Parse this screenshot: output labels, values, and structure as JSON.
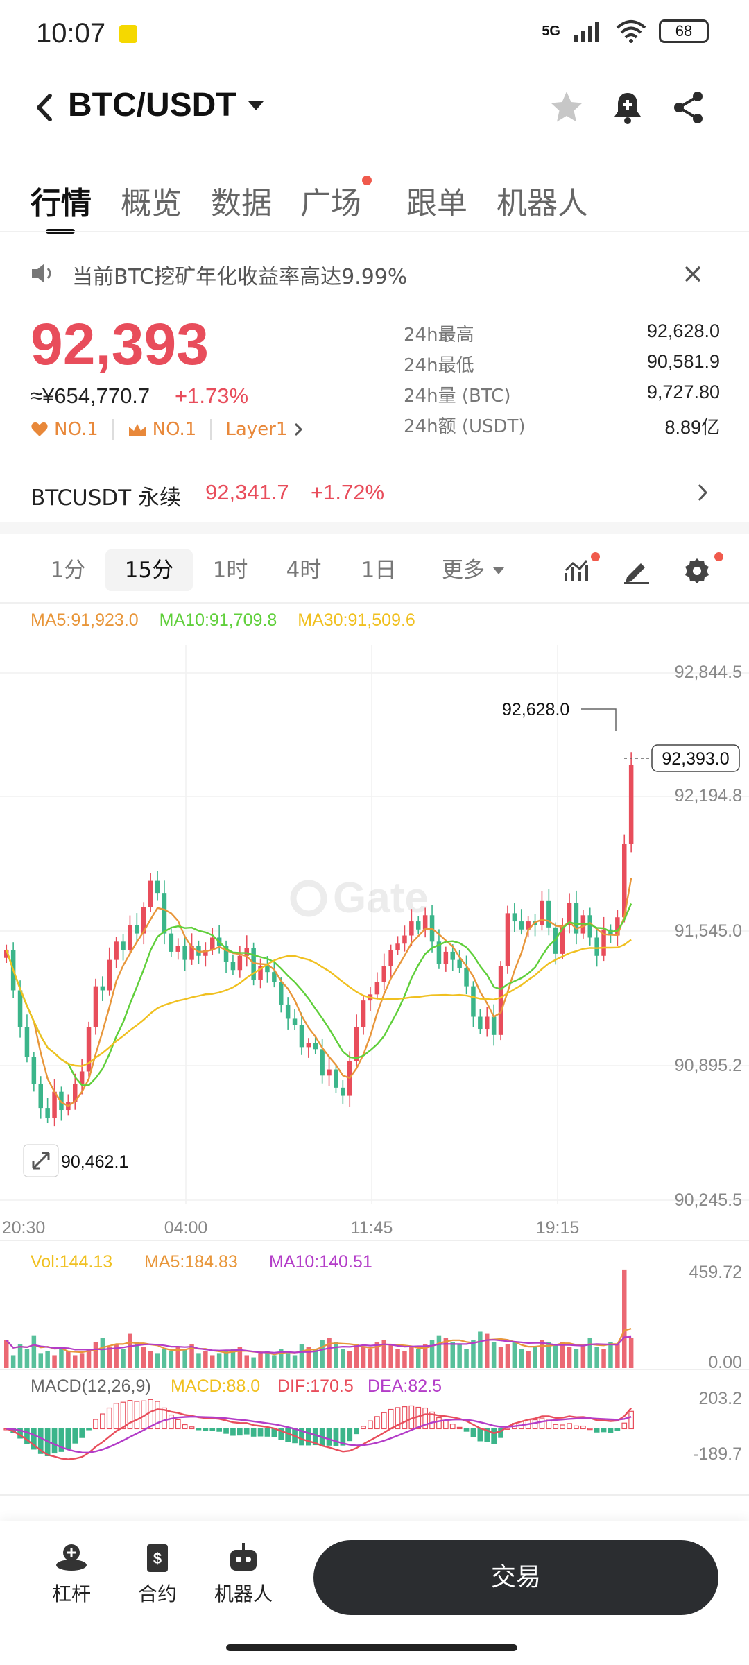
{
  "status_bar": {
    "time": "10:07",
    "network": "5G",
    "battery": "68"
  },
  "header": {
    "title": "BTC/USDT"
  },
  "tabs": [
    {
      "label": "行情",
      "active": true,
      "dot": false
    },
    {
      "label": "概览",
      "active": false,
      "dot": false
    },
    {
      "label": "数据",
      "active": false,
      "dot": false
    },
    {
      "label": "广场",
      "active": false,
      "dot": true
    },
    {
      "label": "跟单",
      "active": false,
      "dot": false
    },
    {
      "label": "机器人",
      "active": false,
      "dot": false
    }
  ],
  "announcement": {
    "text": "当前BTC挖矿年化收益率高达9.99%"
  },
  "price": {
    "last": "92,393",
    "cny": "≈¥654,770.7",
    "change": "+1.73%",
    "tags": [
      "NO.1",
      "NO.1",
      "Layer1"
    ]
  },
  "stats": [
    {
      "label": "24h最高",
      "value": "92,628.0"
    },
    {
      "label": "24h最低",
      "value": "90,581.9"
    },
    {
      "label": "24h量 (BTC)",
      "value": "9,727.80"
    },
    {
      "label": "24h额 (USDT)",
      "value": "8.89亿"
    }
  ],
  "perpetual": {
    "name": "BTCUSDT 永续",
    "price": "92,341.7",
    "change": "+1.72%"
  },
  "intervals": [
    {
      "label": "1分",
      "active": false
    },
    {
      "label": "15分",
      "active": true
    },
    {
      "label": "1时",
      "active": false
    },
    {
      "label": "4时",
      "active": false
    },
    {
      "label": "1日",
      "active": false
    },
    {
      "label": "更多",
      "active": false
    }
  ],
  "ma_legend": {
    "ma5": "MA5:91,923.0",
    "ma10": "MA10:91,709.8",
    "ma30": "MA30:91,509.6"
  },
  "colors": {
    "up": "#e84d5b",
    "down": "#3bb58a",
    "ma5": "#e8963a",
    "ma10": "#5fcf3a",
    "ma30": "#f0c020",
    "dif": "#e84d5b",
    "dea": "#b33cc8"
  },
  "chart_data": {
    "type": "candlestick",
    "price_axis_ticks": [
      "92,844.5",
      "92,194.8",
      "91,545.0",
      "90,895.2",
      "90,245.5"
    ],
    "price_axis_values": [
      92844.5,
      92194.8,
      91545.0,
      90895.2,
      90245.5
    ],
    "time_ticks": [
      "20:30",
      "04:00",
      "11:45",
      "19:15"
    ],
    "high_marker": "92,628.0",
    "low_marker": "90,462.1",
    "current_price_label": "92,393.0",
    "closes": [
      91480,
      91280,
      91100,
      90950,
      90820,
      90700,
      90650,
      90780,
      90690,
      90730,
      90820,
      90880,
      91100,
      91300,
      91280,
      91430,
      91520,
      91480,
      91600,
      91560,
      91690,
      91820,
      91760,
      91560,
      91470,
      91500,
      91430,
      91500,
      91450,
      91480,
      91540,
      91500,
      91420,
      91380,
      91450,
      91490,
      91330,
      91400,
      91370,
      91320,
      91210,
      91140,
      91110,
      91000,
      91020,
      90990,
      90860,
      90890,
      90800,
      90760,
      90930,
      91100,
      91230,
      91260,
      91320,
      91400,
      91480,
      91510,
      91550,
      91620,
      91580,
      91650,
      91520,
      91410,
      91470,
      91430,
      91390,
      91300,
      91150,
      91090,
      91150,
      91060,
      91400,
      91660,
      91620,
      91580,
      91620,
      91600,
      91720,
      91590,
      91460,
      91600,
      91710,
      91560,
      91650,
      91540,
      91450,
      91580,
      91550,
      91640,
      92000,
      92393
    ],
    "volume": {
      "legend_vol": "Vol:144.13",
      "legend_ma5": "MA5:184.83",
      "legend_ma10": "MA10:140.51",
      "axis_max": "459.72",
      "axis_min": "0.00",
      "values": [
        130,
        60,
        110,
        90,
        150,
        70,
        80,
        60,
        100,
        80,
        60,
        70,
        90,
        120,
        140,
        100,
        110,
        90,
        160,
        120,
        100,
        80,
        70,
        90,
        80,
        100,
        90,
        110,
        70,
        80,
        60,
        70,
        80,
        90,
        100,
        60,
        50,
        70,
        80,
        60,
        90,
        70,
        60,
        110,
        100,
        90,
        130,
        140,
        120,
        90,
        80,
        110,
        100,
        90,
        120,
        130,
        110,
        90,
        80,
        100,
        90,
        110,
        130,
        150,
        140,
        120,
        110,
        90,
        130,
        170,
        160,
        120,
        100,
        110,
        120,
        90,
        80,
        100,
        130,
        120,
        110,
        120,
        100,
        90,
        110,
        140,
        100,
        90,
        120,
        110,
        460,
        140
      ]
    },
    "macd": {
      "legend_name": "MACD(12,26,9)",
      "legend_macd": "MACD:88.0",
      "legend_dif": "DIF:170.5",
      "legend_dea": "DEA:82.5",
      "axis_max": "203.2",
      "axis_min": "-189.7"
    }
  },
  "bottom_nav": [
    {
      "label": "杠杆"
    },
    {
      "label": "合约"
    },
    {
      "label": "机器人"
    }
  ],
  "trade_button": "交易"
}
